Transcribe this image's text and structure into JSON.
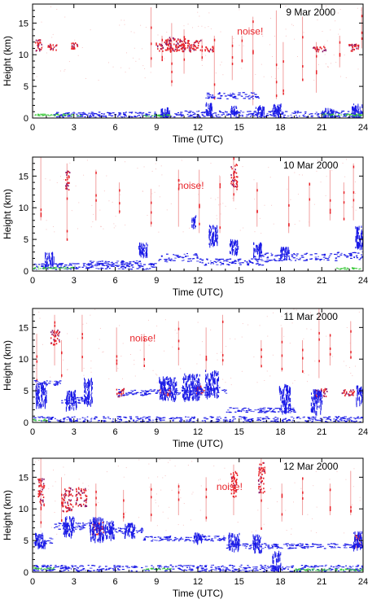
{
  "colors": {
    "noise": "#e8242a",
    "noise_light": "#f2a0a0",
    "cloud": "#1a1ae6",
    "cloud_light": "#6a6af0",
    "surface": "#38c838",
    "frame": "#000000",
    "background": "#ffffff"
  },
  "chart_data": [
    {
      "type": "scatter",
      "panel": "9 Mar 2000",
      "title": "9 Mar 2000",
      "annotation": "noise!",
      "xlabel": "Time (UTC)",
      "ylabel": "Height (km)",
      "xlim": [
        0,
        24
      ],
      "ylim": [
        0,
        18
      ],
      "xticks": [
        0,
        3,
        6,
        9,
        12,
        15,
        18,
        21,
        24
      ],
      "yticks": [
        0,
        5,
        10,
        15
      ],
      "noise_spikes": [
        [
          8.6,
          8,
          17.5
        ],
        [
          9.4,
          9,
          13
        ],
        [
          10.1,
          5,
          15
        ],
        [
          11,
          7,
          14
        ],
        [
          13.2,
          3,
          13
        ],
        [
          14.5,
          6,
          13
        ],
        [
          16,
          2,
          16
        ],
        [
          17.7,
          3,
          17
        ],
        [
          18.2,
          4,
          12
        ],
        [
          19.6,
          6,
          16
        ],
        [
          20.6,
          4,
          12
        ],
        [
          22.3,
          8,
          13
        ],
        [
          23.9,
          11,
          17.5
        ],
        [
          12.3,
          9,
          12.5
        ],
        [
          15.2,
          9,
          13
        ]
      ],
      "red_blobs": [
        [
          0.4,
          11.6,
          0.3,
          1.2
        ],
        [
          1.4,
          11.3,
          0.4,
          0.6
        ],
        [
          3.0,
          11.5,
          0.3,
          0.6
        ],
        [
          9.5,
          11.5,
          0.7,
          1.2
        ],
        [
          10.4,
          11.8,
          0.9,
          1.4
        ],
        [
          11.0,
          11.4,
          0.6,
          1.0
        ],
        [
          11.7,
          11.6,
          0.6,
          1.0
        ],
        [
          12.8,
          11,
          0.4,
          0.5
        ],
        [
          20.8,
          11,
          0.6,
          0.5
        ],
        [
          23.3,
          11.2,
          0.5,
          0.7
        ]
      ],
      "cloud_segments": [
        [
          12.5,
          16.5,
          3.6,
          0.5
        ],
        [
          1.5,
          11,
          0.6,
          0.4
        ],
        [
          11,
          17,
          0.7,
          0.5
        ],
        [
          17,
          24,
          0.6,
          0.6
        ]
      ],
      "cloud_blobs": [
        [
          9.6,
          0.9,
          0.4,
          1.2
        ],
        [
          12.8,
          1.5,
          0.3,
          1.5
        ],
        [
          14.6,
          1.2,
          0.3,
          1.2
        ],
        [
          16.5,
          1.2,
          0.4,
          1.2
        ],
        [
          17.7,
          1.3,
          0.4,
          1.5
        ],
        [
          21.5,
          0.9,
          0.6,
          1.0
        ],
        [
          23.5,
          1.2,
          0.5,
          1.6
        ]
      ],
      "surface_band": [
        [
          0,
          3.5,
          0.4
        ],
        [
          8,
          10,
          0.3
        ],
        [
          21,
          24,
          0.4
        ]
      ]
    },
    {
      "type": "scatter",
      "panel": "10 Mar 2000",
      "title": "10 Mar 2000",
      "annotation": "noise!",
      "xlabel": "Time (UTC)",
      "ylabel": "Height (km)",
      "xlim": [
        0,
        24
      ],
      "ylim": [
        0,
        18
      ],
      "xticks": [
        0,
        3,
        6,
        9,
        12,
        15,
        18,
        21,
        24
      ],
      "yticks": [
        0,
        5,
        10,
        15
      ],
      "noise_spikes": [
        [
          0.6,
          8,
          18
        ],
        [
          2.5,
          5,
          17
        ],
        [
          4.6,
          8,
          16
        ],
        [
          6.3,
          9,
          14
        ],
        [
          8.6,
          7,
          13
        ],
        [
          10.6,
          7,
          16
        ],
        [
          12.1,
          6,
          16
        ],
        [
          13.6,
          6,
          15
        ],
        [
          14.6,
          11,
          18
        ],
        [
          16.3,
          7,
          14
        ],
        [
          18.6,
          6,
          15
        ],
        [
          20.1,
          7,
          14
        ],
        [
          21.6,
          8,
          16
        ],
        [
          22.6,
          8,
          14
        ],
        [
          23.3,
          8,
          17
        ]
      ],
      "red_blobs": [
        [
          2.5,
          14.5,
          0.2,
          2.0
        ],
        [
          14.6,
          15,
          0.3,
          2.5
        ]
      ],
      "cloud_segments": [
        [
          0,
          9,
          0.8,
          0.5
        ],
        [
          9,
          12,
          2.2,
          0.7
        ],
        [
          12,
          17,
          1.5,
          0.5
        ],
        [
          16,
          22,
          2.3,
          0.6
        ],
        [
          22,
          24,
          2.5,
          0.6
        ],
        [
          4,
          8,
          1.3,
          0.4
        ]
      ],
      "cloud_blobs": [
        [
          1.2,
          2.0,
          0.4,
          1.5
        ],
        [
          8.0,
          3.5,
          0.4,
          1.5
        ],
        [
          11.7,
          8.0,
          0.2,
          1.2
        ],
        [
          13.1,
          5.8,
          0.4,
          2.2
        ],
        [
          14.6,
          4.0,
          0.4,
          1.5
        ],
        [
          16.3,
          3.5,
          0.4,
          1.5
        ],
        [
          18.3,
          3.0,
          0.4,
          1.2
        ],
        [
          23.8,
          5.5,
          0.5,
          2.5
        ]
      ],
      "surface_band": [
        [
          0,
          3,
          0.4
        ],
        [
          22,
          24,
          0.3
        ]
      ]
    },
    {
      "type": "scatter",
      "panel": "11 Mar 2000",
      "title": "11 Mar 2000",
      "annotation": "noise!",
      "xlabel": "Time (UTC)",
      "ylabel": "Height (km)",
      "xlim": [
        0,
        24
      ],
      "ylim": [
        0,
        18
      ],
      "xticks": [
        0,
        3,
        6,
        9,
        12,
        15,
        18,
        21,
        24
      ],
      "yticks": [
        0,
        5,
        10,
        15
      ],
      "noise_spikes": [
        [
          0.3,
          5,
          14
        ],
        [
          1.6,
          9,
          17
        ],
        [
          2.1,
          7,
          13
        ],
        [
          3.6,
          8,
          17
        ],
        [
          6.1,
          8,
          15
        ],
        [
          8.1,
          9,
          14
        ],
        [
          10.6,
          9,
          16
        ],
        [
          12.6,
          8,
          15
        ],
        [
          13.8,
          9,
          17
        ],
        [
          16.6,
          9,
          13
        ],
        [
          18.1,
          8,
          15
        ],
        [
          19.6,
          8,
          13
        ],
        [
          20.8,
          7,
          18
        ],
        [
          21.6,
          9,
          14
        ],
        [
          23.1,
          10,
          16
        ]
      ],
      "red_blobs": [
        [
          1.6,
          13.5,
          0.4,
          1.5
        ],
        [
          6.3,
          4.8,
          0.4,
          0.8
        ],
        [
          9.6,
          5.0,
          0.5,
          0.8
        ],
        [
          12.1,
          5.2,
          0.4,
          0.8
        ],
        [
          20.9,
          4.8,
          0.6,
          0.8
        ],
        [
          22.9,
          4.8,
          0.6,
          0.6
        ]
      ],
      "cloud_segments": [
        [
          0,
          2,
          6.3,
          0.4
        ],
        [
          2,
          4,
          3.6,
          0.5
        ],
        [
          6,
          9,
          4.8,
          0.5
        ],
        [
          9,
          14,
          5.0,
          0.6
        ],
        [
          0,
          24,
          0.5,
          0.5
        ],
        [
          14,
          19,
          2.0,
          0.4
        ]
      ],
      "cloud_blobs": [
        [
          0.6,
          4.5,
          0.5,
          2.5
        ],
        [
          2.8,
          3.8,
          0.5,
          2.0
        ],
        [
          4.0,
          5.0,
          0.4,
          3.0
        ],
        [
          9.8,
          5.6,
          0.8,
          2.5
        ],
        [
          11.5,
          5.8,
          0.8,
          2.8
        ],
        [
          13.0,
          6.2,
          0.6,
          3.0
        ],
        [
          18.3,
          4.0,
          0.5,
          3.0
        ],
        [
          20.6,
          3.5,
          0.5,
          2.5
        ],
        [
          23.8,
          4.5,
          0.4,
          2.0
        ]
      ],
      "surface_band": [
        [
          0,
          1,
          0.3
        ]
      ]
    },
    {
      "type": "scatter",
      "panel": "12 Mar 2000",
      "title": "12 Mar 2000",
      "annotation": "noise!",
      "xlabel": "Time (UTC)",
      "ylabel": "Height (km)",
      "xlim": [
        0,
        24
      ],
      "ylim": [
        0,
        18
      ],
      "xticks": [
        0,
        3,
        6,
        9,
        12,
        15,
        18,
        21,
        24
      ],
      "yticks": [
        0,
        5,
        10,
        15
      ],
      "noise_spikes": [
        [
          0.6,
          7,
          18
        ],
        [
          2.1,
          8,
          15
        ],
        [
          4.6,
          8,
          14
        ],
        [
          6.6,
          8,
          13
        ],
        [
          8.6,
          8,
          14
        ],
        [
          10.6,
          9,
          14
        ],
        [
          12.6,
          8,
          15
        ],
        [
          14.6,
          9,
          17
        ],
        [
          16.6,
          7,
          18
        ],
        [
          18.1,
          8,
          14
        ],
        [
          19.6,
          9,
          15
        ],
        [
          21.6,
          9,
          14
        ],
        [
          23.1,
          9,
          16
        ]
      ],
      "red_blobs": [
        [
          0.6,
          12.5,
          0.3,
          3.0
        ],
        [
          2.5,
          11.5,
          0.5,
          2.5
        ],
        [
          3.5,
          12.0,
          0.5,
          2.0
        ],
        [
          4.7,
          7.0,
          0.5,
          1.2
        ],
        [
          14.6,
          14,
          0.3,
          2.5
        ],
        [
          16.6,
          15,
          0.3,
          3.0
        ],
        [
          23.6,
          5.0,
          0.3,
          1.2
        ]
      ],
      "cloud_segments": [
        [
          0,
          1.5,
          5.0,
          0.5
        ],
        [
          1.5,
          5,
          7.3,
          0.6
        ],
        [
          5,
          8,
          6.6,
          0.5
        ],
        [
          8,
          14,
          5.4,
          0.4
        ],
        [
          14,
          24,
          4.2,
          0.4
        ],
        [
          0,
          24,
          0.7,
          0.5
        ]
      ],
      "cloud_blobs": [
        [
          0.5,
          5.2,
          0.5,
          1.5
        ],
        [
          2.6,
          7.3,
          0.5,
          2.2
        ],
        [
          4.6,
          7.0,
          0.6,
          2.5
        ],
        [
          5.5,
          6.8,
          0.5,
          2.0
        ],
        [
          7.0,
          6.8,
          0.5,
          1.5
        ],
        [
          12.0,
          5.6,
          0.4,
          1.0
        ],
        [
          14.6,
          5.0,
          0.5,
          1.8
        ],
        [
          16.3,
          4.6,
          0.4,
          2.0
        ],
        [
          17.7,
          2.0,
          0.4,
          2.0
        ],
        [
          23.6,
          5.2,
          0.4,
          2.0
        ]
      ],
      "surface_band": [
        [
          0,
          1.5,
          0.5
        ],
        [
          8,
          10,
          0.4
        ],
        [
          19,
          24,
          0.3
        ]
      ]
    }
  ]
}
